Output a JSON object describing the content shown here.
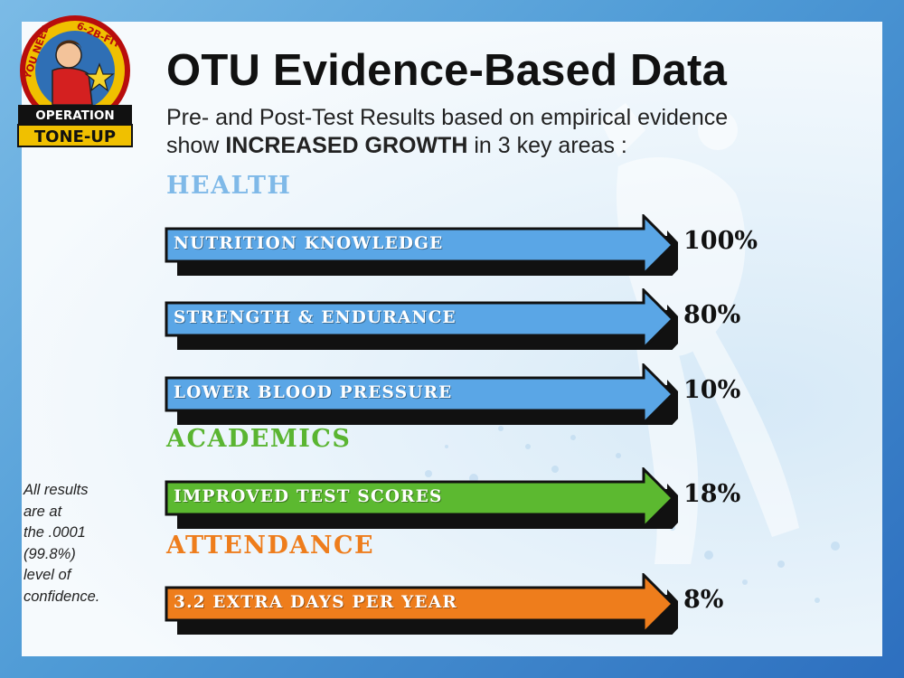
{
  "logo": {
    "arc_left": "YOU NEED",
    "arc_right": "6-2B-FIT",
    "line1": "OPERATION",
    "line2": "TONE-UP"
  },
  "title": "OTU Evidence-Based Data",
  "subtitle": {
    "line1": "Pre- and Post-Test Results based on empirical evidence",
    "line2_prefix": "show ",
    "line2_bold": "INCREASED GROWTH",
    "line2_suffix": " in 3 key areas :"
  },
  "sections": {
    "health": "HEALTH",
    "academics": "ACADEMICS",
    "attendance": "ATTENDANCE"
  },
  "rows": [
    {
      "label": "NUTRITION KNOWLEDGE",
      "value": "100%",
      "color": "#5aa6e6"
    },
    {
      "label": "STRENGTH & ENDURANCE",
      "value": "80%",
      "color": "#5aa6e6"
    },
    {
      "label": "LOWER BLOOD PRESSURE",
      "value": "10%",
      "color": "#5aa6e6"
    },
    {
      "label": "IMPROVED TEST SCORES",
      "value": "18%",
      "color": "#5cb930"
    },
    {
      "label": "3.2 EXTRA DAYS PER YEAR",
      "value": "8%",
      "color": "#ee7d1c"
    }
  ],
  "footnote": {
    "l1": "All results",
    "l2": "are at",
    "l3": "the .0001",
    "l4": "(99.8%)",
    "l5": "level of",
    "l6": "confidence."
  },
  "colors": {
    "frame": "#3f86cc",
    "health": "#7fb9e8",
    "academics": "#5ab531",
    "attendance": "#ee7d1c"
  }
}
